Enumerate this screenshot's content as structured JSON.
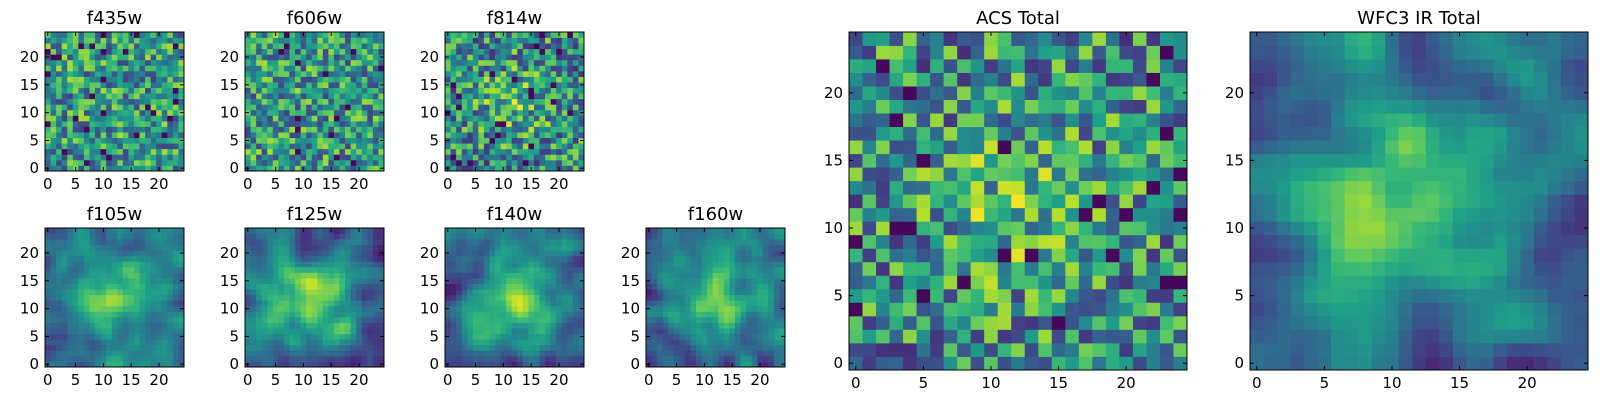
{
  "chart_data": [
    {
      "type": "heatmap",
      "title": "f435w",
      "colormap": "viridis",
      "grid": 24,
      "x_ticks": [
        0,
        5,
        10,
        15,
        20
      ],
      "y_ticks": [
        0,
        5,
        10,
        15,
        20
      ],
      "xlim": [
        0,
        24
      ],
      "ylim": [
        0,
        24
      ],
      "pattern": "noise",
      "seed": 11
    },
    {
      "type": "heatmap",
      "title": "f606w",
      "colormap": "viridis",
      "grid": 24,
      "x_ticks": [
        0,
        5,
        10,
        15,
        20
      ],
      "y_ticks": [
        0,
        5,
        10,
        15,
        20
      ],
      "xlim": [
        0,
        24
      ],
      "ylim": [
        0,
        24
      ],
      "pattern": "noise",
      "seed": 23
    },
    {
      "type": "heatmap",
      "title": "f814w",
      "colormap": "viridis",
      "grid": 24,
      "x_ticks": [
        0,
        5,
        10,
        15,
        20
      ],
      "y_ticks": [
        0,
        5,
        10,
        15,
        20
      ],
      "xlim": [
        0,
        24
      ],
      "ylim": [
        0,
        24
      ],
      "pattern": "noise-center",
      "seed": 37
    },
    {
      "type": "heatmap",
      "title": "f105w",
      "colormap": "viridis",
      "grid": 24,
      "x_ticks": [
        0,
        5,
        10,
        15,
        20
      ],
      "y_ticks": [
        0,
        5,
        10,
        15,
        20
      ],
      "xlim": [
        0,
        24
      ],
      "ylim": [
        0,
        24
      ],
      "pattern": "smooth-center",
      "seed": 41
    },
    {
      "type": "heatmap",
      "title": "f125w",
      "colormap": "viridis",
      "grid": 24,
      "x_ticks": [
        0,
        5,
        10,
        15,
        20
      ],
      "y_ticks": [
        0,
        5,
        10,
        15,
        20
      ],
      "xlim": [
        0,
        24
      ],
      "ylim": [
        0,
        24
      ],
      "pattern": "smooth-center",
      "seed": 53
    },
    {
      "type": "heatmap",
      "title": "f140w",
      "colormap": "viridis",
      "grid": 24,
      "x_ticks": [
        0,
        5,
        10,
        15,
        20
      ],
      "y_ticks": [
        0,
        5,
        10,
        15,
        20
      ],
      "xlim": [
        0,
        24
      ],
      "ylim": [
        0,
        24
      ],
      "pattern": "smooth-center",
      "seed": 67
    },
    {
      "type": "heatmap",
      "title": "f160w",
      "colormap": "viridis",
      "grid": 24,
      "x_ticks": [
        0,
        5,
        10,
        15,
        20
      ],
      "y_ticks": [
        0,
        5,
        10,
        15,
        20
      ],
      "xlim": [
        0,
        24
      ],
      "ylim": [
        0,
        24
      ],
      "pattern": "smooth-center",
      "seed": 79
    },
    {
      "type": "heatmap",
      "title": "ACS Total",
      "colormap": "viridis",
      "grid": 24,
      "x_ticks": [
        0,
        5,
        10,
        15,
        20
      ],
      "y_ticks": [
        0,
        5,
        10,
        15,
        20
      ],
      "xlim": [
        0,
        24
      ],
      "ylim": [
        0,
        24
      ],
      "pattern": "noise-center",
      "seed": 97
    },
    {
      "type": "heatmap",
      "title": "WFC3 IR Total",
      "colormap": "viridis",
      "grid": 24,
      "x_ticks": [
        0,
        5,
        10,
        15,
        20
      ],
      "y_ticks": [
        0,
        5,
        10,
        15,
        20
      ],
      "xlim": [
        0,
        24
      ],
      "ylim": [
        0,
        24
      ],
      "pattern": "smooth-center",
      "seed": 101
    }
  ]
}
